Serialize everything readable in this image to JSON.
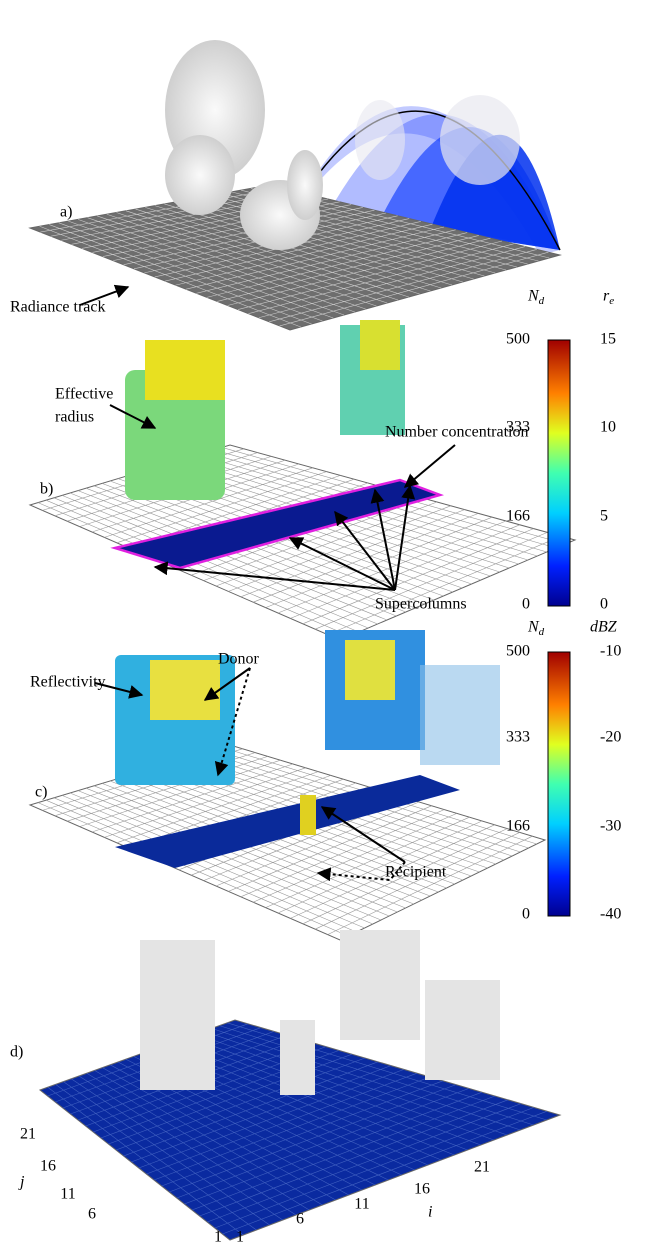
{
  "panels": [
    {
      "label": "a)",
      "annotations": [
        "Radiance track"
      ]
    },
    {
      "label": "b)",
      "annotations": [
        "Effective",
        "radius",
        "Number concentration",
        "Supercolumns"
      ]
    },
    {
      "label": "c)",
      "annotations": [
        "Reflectivity",
        "Donor",
        "Recipient"
      ]
    },
    {
      "label": "d)",
      "annotations": []
    }
  ],
  "colorbars": [
    {
      "left_title": "N",
      "left_sub": "d",
      "right_title": "r",
      "right_sub": "e",
      "left_ticks": [
        500,
        333,
        166,
        0
      ],
      "right_ticks": [
        15,
        10,
        5,
        0
      ]
    },
    {
      "left_title": "N",
      "left_sub": "d",
      "right_title": "dBZ",
      "left_ticks": [
        500,
        333,
        166,
        0
      ],
      "right_ticks": [
        -10,
        -20,
        -30,
        -40
      ]
    }
  ],
  "axes": {
    "j_label": "j",
    "i_label": "i",
    "j_ticks": [
      21,
      16,
      11,
      6,
      1
    ],
    "i_ticks": [
      1,
      6,
      11,
      16,
      21
    ]
  }
}
